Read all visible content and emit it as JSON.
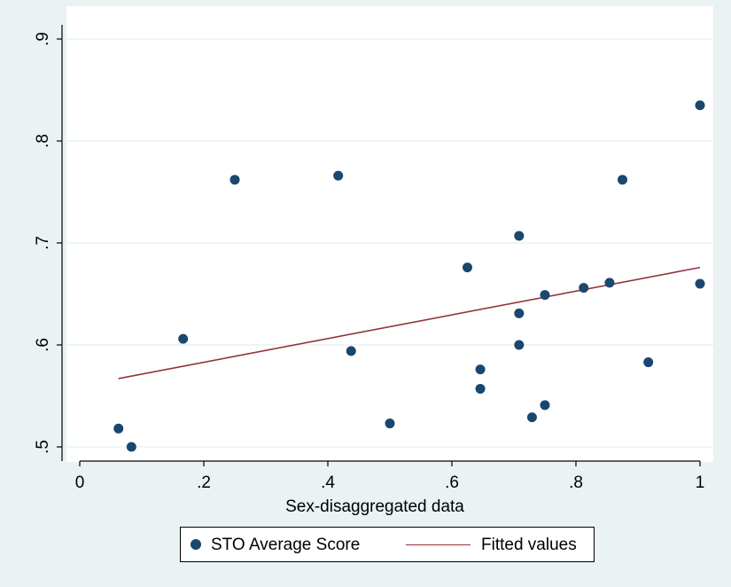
{
  "chart_data": {
    "type": "scatter",
    "xlabel": "Sex-disaggregated data",
    "ylabel": "",
    "xlim": [
      0,
      1
    ],
    "ylim": [
      0.5,
      0.9
    ],
    "x_ticks": [
      0,
      0.2,
      0.4,
      0.6,
      0.8,
      1
    ],
    "x_tick_labels": [
      "0",
      ".2",
      ".4",
      ".6",
      ".8",
      "1"
    ],
    "y_ticks": [
      0.5,
      0.6,
      0.7,
      0.8,
      0.9
    ],
    "y_tick_labels": [
      ".5",
      ".6",
      ".7",
      ".8",
      ".9"
    ],
    "grid": "horizontal",
    "legend_position": "bottom",
    "series": [
      {
        "name": "STO Average Score",
        "type": "scatter",
        "color": "#1a476f",
        "x": [
          0.0625,
          0.0833,
          0.1667,
          0.25,
          0.4167,
          0.4375,
          0.5,
          0.625,
          0.6458,
          0.6458,
          0.7083,
          0.7083,
          0.7083,
          0.7292,
          0.75,
          0.75,
          0.8125,
          0.8542,
          0.875,
          0.9167,
          1.0,
          1.0
        ],
        "y": [
          0.518,
          0.5,
          0.606,
          0.762,
          0.766,
          0.594,
          0.523,
          0.676,
          0.576,
          0.557,
          0.707,
          0.631,
          0.6,
          0.529,
          0.541,
          0.649,
          0.656,
          0.661,
          0.762,
          0.583,
          0.835,
          0.66
        ]
      },
      {
        "name": "Fitted values",
        "type": "line",
        "color": "#90353b",
        "x": [
          0.0625,
          1.0
        ],
        "y": [
          0.567,
          0.676
        ]
      }
    ]
  }
}
